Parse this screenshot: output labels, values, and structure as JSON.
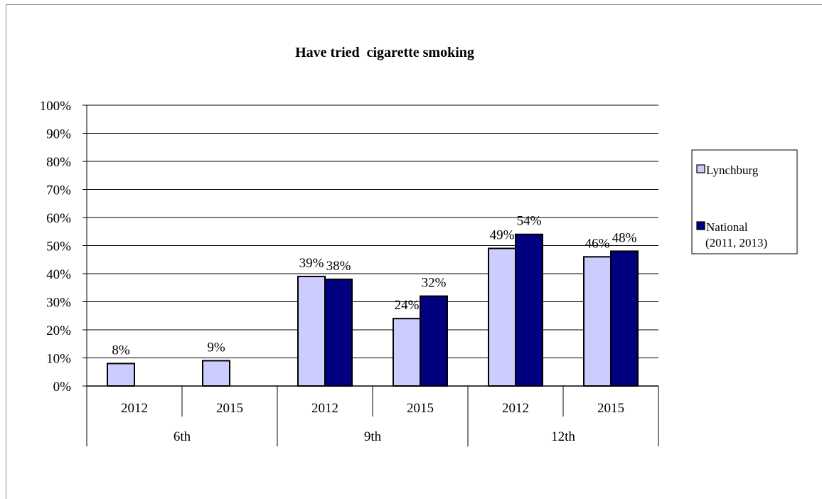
{
  "chart_data": {
    "type": "bar",
    "title": "Have tried  cigarette smoking",
    "xlabel": "",
    "ylabel": "",
    "ylim": [
      0,
      100
    ],
    "yticks": [
      "0%",
      "10%",
      "20%",
      "30%",
      "40%",
      "50%",
      "60%",
      "70%",
      "80%",
      "90%",
      "100%"
    ],
    "grid": true,
    "legend_position": "right",
    "groups": [
      {
        "label": "6th",
        "categories": [
          "2012",
          "2015"
        ]
      },
      {
        "label": "9th",
        "categories": [
          "2012",
          "2015"
        ]
      },
      {
        "label": "12th",
        "categories": [
          "2012",
          "2015"
        ]
      }
    ],
    "categories": [
      "2012",
      "2015",
      "2012",
      "2015",
      "2012",
      "2015"
    ],
    "series": [
      {
        "name": "Lynchburg",
        "color": "#ccccff",
        "values": [
          8,
          9,
          39,
          24,
          49,
          46
        ],
        "labels": [
          "8%",
          "9%",
          "39%",
          "24%",
          "49%",
          "46%"
        ]
      },
      {
        "name": "National (2011, 2013)",
        "color": "#000080",
        "values": [
          null,
          null,
          38,
          32,
          54,
          48
        ],
        "labels": [
          null,
          null,
          "38%",
          "32%",
          "54%",
          "48%"
        ]
      }
    ],
    "legend": {
      "entries": [
        {
          "lines": [
            "Lynchburg"
          ]
        },
        {
          "lines": [
            "National",
            "(2011, 2013)"
          ]
        }
      ]
    }
  }
}
